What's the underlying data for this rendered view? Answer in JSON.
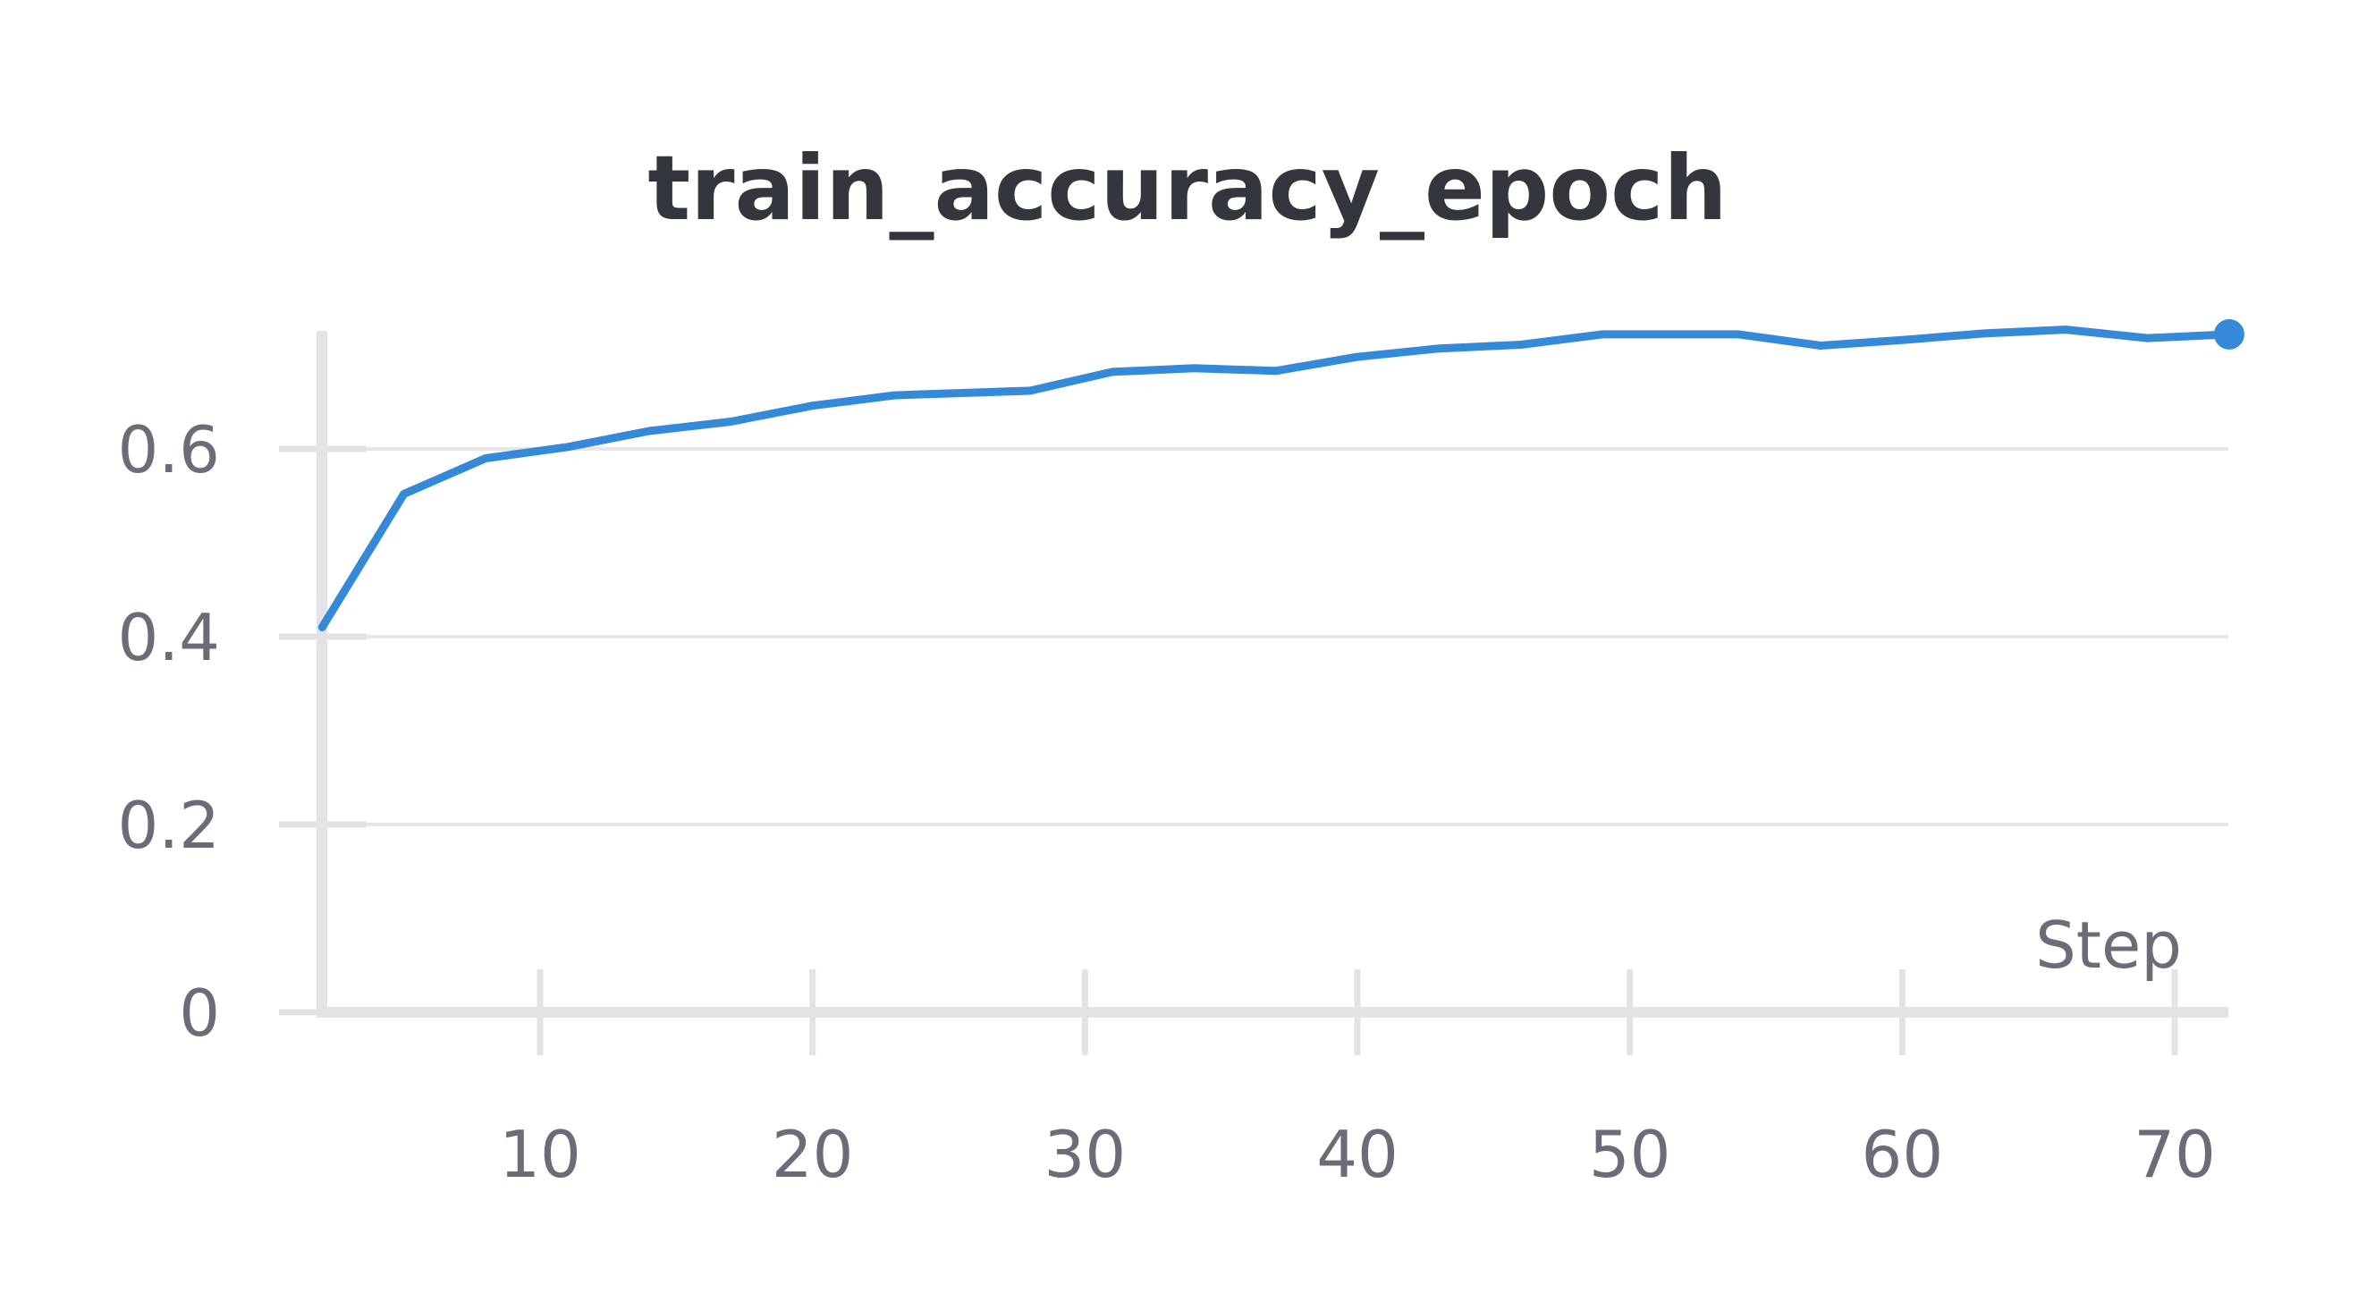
{
  "chart_data": {
    "type": "line",
    "title": "train_accuracy_epoch",
    "xlabel": "Step",
    "ylabel": "",
    "xlim": [
      2,
      72
    ],
    "ylim": [
      0,
      0.72
    ],
    "x_ticks": [
      10,
      20,
      30,
      40,
      50,
      60,
      70
    ],
    "x_tick_labels": [
      "10",
      "20",
      "30",
      "40",
      "50",
      "60",
      "70"
    ],
    "y_ticks": [
      0,
      0.2,
      0.4,
      0.6
    ],
    "y_tick_labels": [
      "0",
      "0.2",
      "0.4",
      "0.6"
    ],
    "grid": true,
    "legend": "none",
    "series": [
      {
        "color": "#3489d8",
        "x": [
          2,
          5,
          8,
          11,
          14,
          17,
          20,
          23,
          28,
          31,
          34,
          37,
          40,
          43,
          46,
          49,
          54,
          57,
          60,
          63,
          66,
          69,
          72
        ],
        "y": [
          0.41,
          0.552,
          0.59,
          0.602,
          0.619,
          0.629,
          0.646,
          0.657,
          0.662,
          0.682,
          0.686,
          0.683,
          0.698,
          0.707,
          0.711,
          0.722,
          0.722,
          0.71,
          0.716,
          0.723,
          0.727,
          0.718,
          0.722
        ]
      }
    ]
  }
}
